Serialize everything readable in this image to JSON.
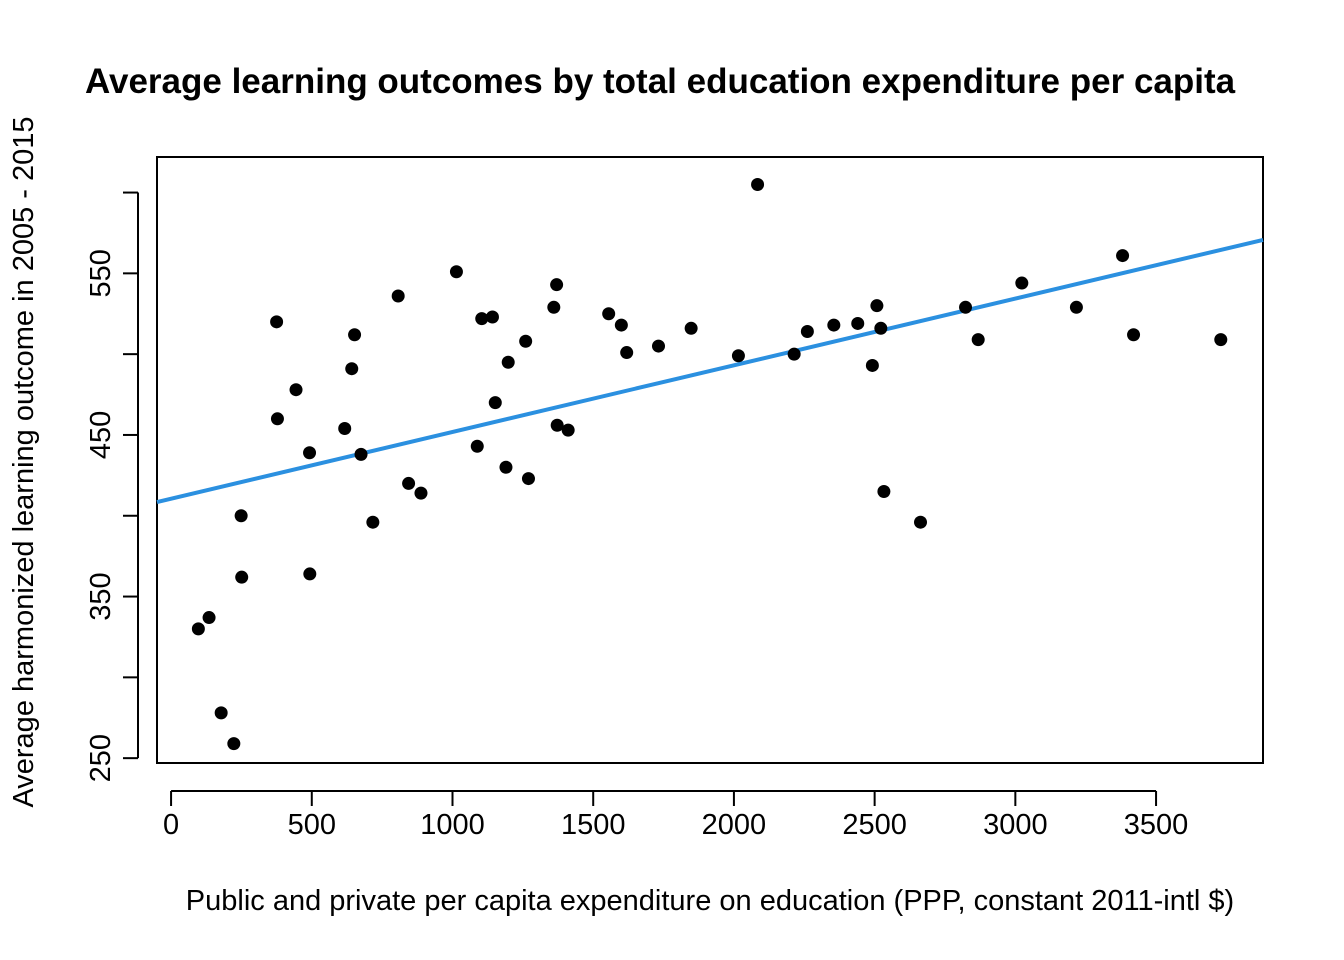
{
  "chart_data": {
    "type": "scatter",
    "title": "Average learning outcomes by total education expenditure per capita",
    "xlabel": "Public and private per capita expenditure on education (PPP, constant 2011-intl $)",
    "ylabel": "Average harmonized learning outcome in 2005 - 2015",
    "xlim": [
      -50,
      3880
    ],
    "ylim": [
      247,
      622
    ],
    "xticks": [
      0,
      500,
      1000,
      1500,
      2000,
      2500,
      3000,
      3500
    ],
    "yticks": [
      250,
      300,
      350,
      400,
      450,
      500,
      550,
      600
    ],
    "yticklabels": [
      "250",
      "",
      "350",
      "",
      "450",
      "",
      "550",
      ""
    ],
    "grid": false,
    "point_color": "#000000",
    "trendline": {
      "color": "#2b90e0",
      "x": [
        -50,
        3880
      ],
      "y": [
        408.5,
        570.7
      ]
    },
    "points": [
      {
        "x": 97,
        "y": 330
      },
      {
        "x": 135,
        "y": 337
      },
      {
        "x": 178,
        "y": 278
      },
      {
        "x": 223,
        "y": 259
      },
      {
        "x": 249,
        "y": 400
      },
      {
        "x": 251,
        "y": 362
      },
      {
        "x": 375,
        "y": 520
      },
      {
        "x": 378,
        "y": 460
      },
      {
        "x": 444,
        "y": 478
      },
      {
        "x": 492,
        "y": 439
      },
      {
        "x": 493,
        "y": 364
      },
      {
        "x": 617,
        "y": 454
      },
      {
        "x": 642,
        "y": 491
      },
      {
        "x": 652,
        "y": 512
      },
      {
        "x": 675,
        "y": 438
      },
      {
        "x": 717,
        "y": 396
      },
      {
        "x": 807,
        "y": 536
      },
      {
        "x": 844,
        "y": 420
      },
      {
        "x": 888,
        "y": 414
      },
      {
        "x": 1014,
        "y": 551
      },
      {
        "x": 1088,
        "y": 443
      },
      {
        "x": 1104,
        "y": 522
      },
      {
        "x": 1142,
        "y": 523
      },
      {
        "x": 1152,
        "y": 470
      },
      {
        "x": 1190,
        "y": 430
      },
      {
        "x": 1198,
        "y": 495
      },
      {
        "x": 1260,
        "y": 508
      },
      {
        "x": 1270,
        "y": 423
      },
      {
        "x": 1360,
        "y": 529
      },
      {
        "x": 1370,
        "y": 543
      },
      {
        "x": 1372,
        "y": 456
      },
      {
        "x": 1411,
        "y": 453
      },
      {
        "x": 1555,
        "y": 525
      },
      {
        "x": 1600,
        "y": 518
      },
      {
        "x": 1619,
        "y": 501
      },
      {
        "x": 1732,
        "y": 505
      },
      {
        "x": 1848,
        "y": 516
      },
      {
        "x": 2016,
        "y": 499
      },
      {
        "x": 2084,
        "y": 605
      },
      {
        "x": 2214,
        "y": 500
      },
      {
        "x": 2261,
        "y": 514
      },
      {
        "x": 2355,
        "y": 518
      },
      {
        "x": 2440,
        "y": 519
      },
      {
        "x": 2492,
        "y": 493
      },
      {
        "x": 2508,
        "y": 530
      },
      {
        "x": 2522,
        "y": 516
      },
      {
        "x": 2533,
        "y": 415
      },
      {
        "x": 2663,
        "y": 396
      },
      {
        "x": 2823,
        "y": 529
      },
      {
        "x": 2868,
        "y": 509
      },
      {
        "x": 3023,
        "y": 544
      },
      {
        "x": 3217,
        "y": 529
      },
      {
        "x": 3381,
        "y": 561
      },
      {
        "x": 3420,
        "y": 512
      },
      {
        "x": 3730,
        "y": 509
      }
    ]
  }
}
